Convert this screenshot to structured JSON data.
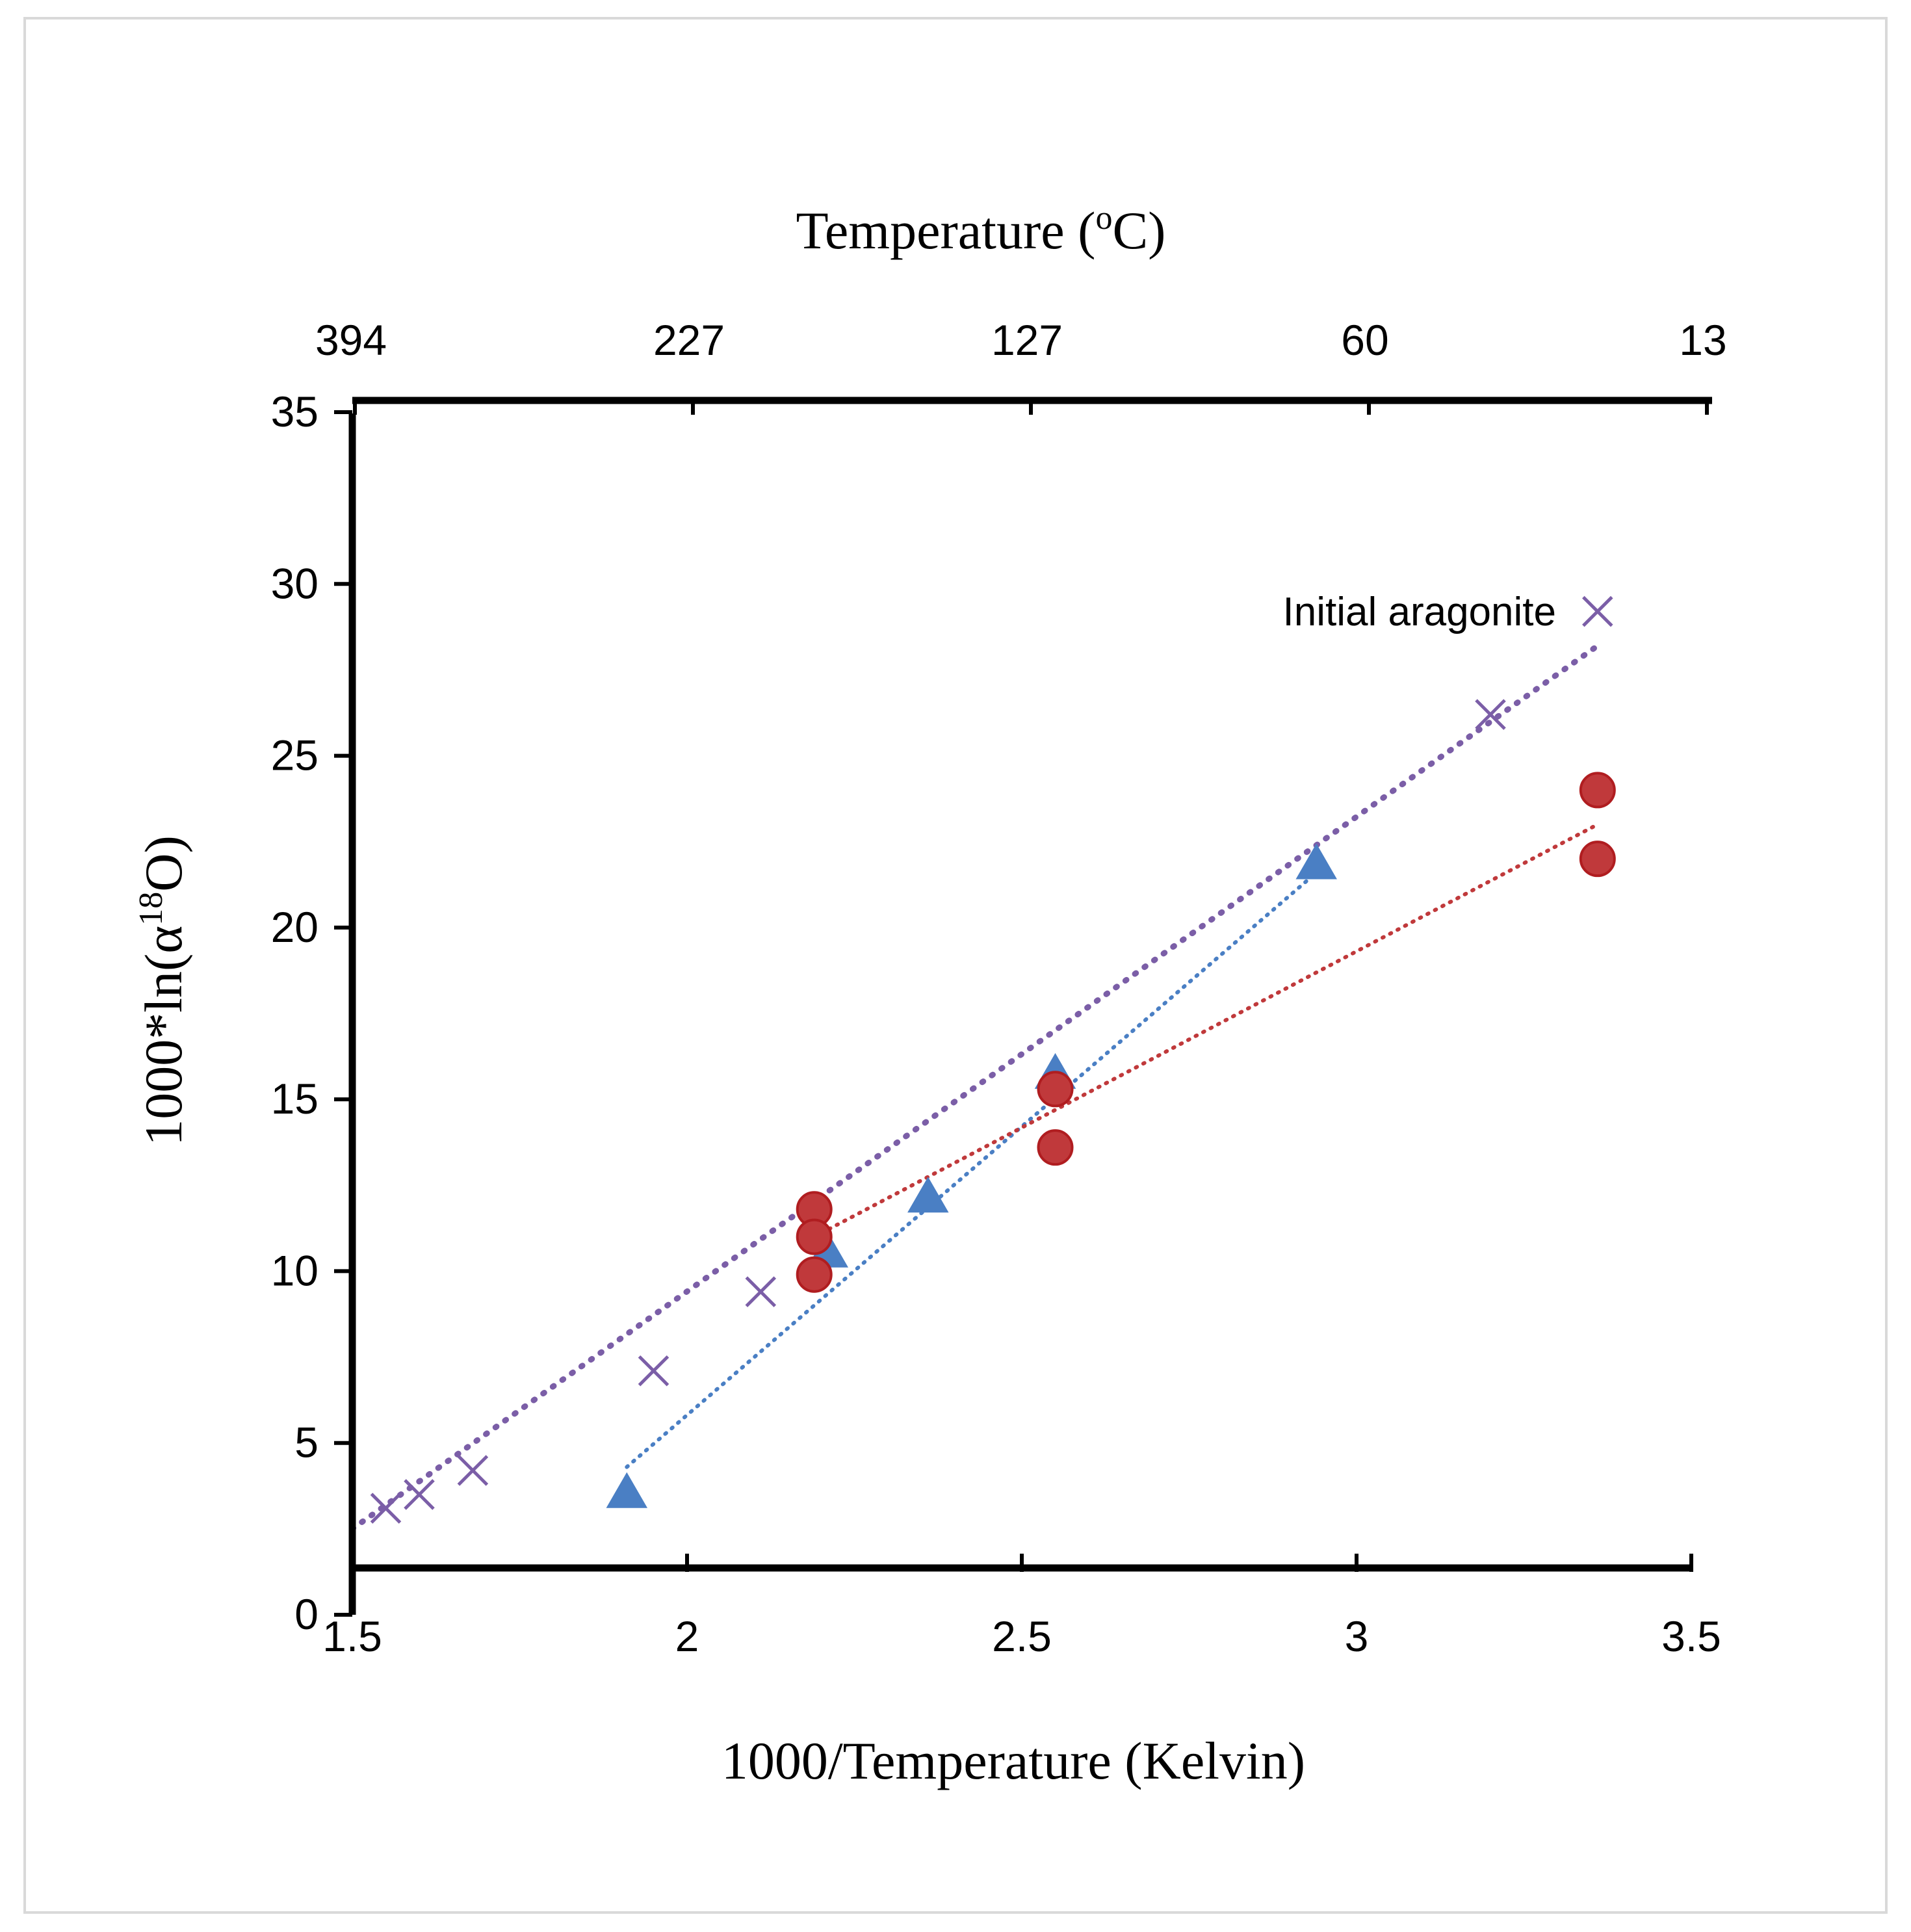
{
  "chart_data": {
    "type": "scatter",
    "title": "",
    "xlabel": "1000/Temperature (Kelvin)",
    "ylabel_parts": {
      "pre": "1000*ln(α",
      "sup": "18",
      "post": "O)"
    },
    "x_ticks": [
      "1.5",
      "2",
      "2.5",
      "3",
      "3.5"
    ],
    "y_ticks": [
      "0",
      "5",
      "10",
      "15",
      "20",
      "25",
      "30",
      "35"
    ],
    "xlim": [
      1.5,
      3.5
    ],
    "ylim": [
      0,
      35
    ],
    "x_axis_crosses_y_at": 1.5,
    "top_axis": {
      "label_parts": {
        "pre": "Temperature (",
        "sup": "o",
        "post": "C)"
      },
      "ticks": [
        "394",
        "227",
        "127",
        "60",
        "13"
      ]
    },
    "annotation": "Initial aragonite",
    "series": [
      {
        "name": "purple-crosses",
        "marker": "x",
        "color": "#7b5ea7",
        "x": [
          1.55,
          1.6,
          1.68,
          1.95,
          2.11,
          3.2,
          3.36
        ],
        "y": [
          3.1,
          3.5,
          4.2,
          7.1,
          9.4,
          26.2,
          29.2
        ]
      },
      {
        "name": "blue-triangles",
        "marker": "triangle",
        "color": "#4a7fc4",
        "x": [
          1.91,
          2.21,
          2.36,
          2.55,
          2.94
        ],
        "y": [
          3.5,
          10.5,
          12.1,
          15.7,
          21.8
        ]
      },
      {
        "name": "red-circles",
        "marker": "circle",
        "color": "#c0393b",
        "x": [
          2.19,
          2.19,
          2.19,
          2.55,
          2.55,
          3.36,
          3.36
        ],
        "y": [
          11.8,
          11.0,
          9.9,
          15.3,
          13.6,
          24.0,
          22.0
        ]
      }
    ],
    "trendlines": [
      {
        "name": "purple-trendline",
        "color": "#7b5ea7",
        "x": [
          1.5,
          3.36
        ],
        "y": [
          2.5,
          28.2
        ]
      },
      {
        "name": "blue-trendline",
        "color": "#4a7fc4",
        "x": [
          1.91,
          2.94
        ],
        "y": [
          4.3,
          21.6
        ]
      },
      {
        "name": "red-trendline",
        "color": "#c0393b",
        "x": [
          2.19,
          3.36
        ],
        "y": [
          11.0,
          23.0
        ]
      }
    ]
  }
}
